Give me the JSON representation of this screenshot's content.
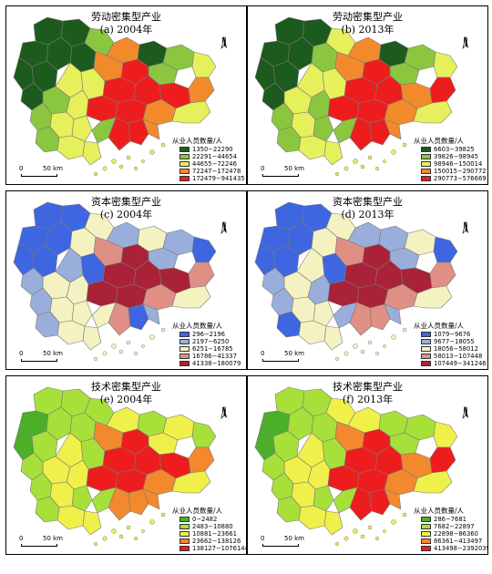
{
  "panels": [
    {
      "id": "a",
      "title": "劳动密集型产业",
      "subtitle": "(a) 2004年",
      "legend_title": "从业人员数量/人",
      "classes": [
        {
          "label": "1350−22290",
          "color": "#1d5a1d"
        },
        {
          "label": "22291−44654",
          "color": "#8bc63f"
        },
        {
          "label": "44655−72246",
          "color": "#e6f05a"
        },
        {
          "label": "72247−172478",
          "color": "#f28a2c"
        },
        {
          "label": "172479−941435",
          "color": "#ee1d1d"
        }
      ],
      "scale": {
        "zero": "0",
        "dist": "50 km"
      },
      "north": "N"
    },
    {
      "id": "b",
      "title": "劳动密集型产业",
      "subtitle": "(b) 2013年",
      "legend_title": "从业人员数量/人",
      "classes": [
        {
          "label": "6603−39825",
          "color": "#1d5a1d"
        },
        {
          "label": "39826−98945",
          "color": "#8bc63f"
        },
        {
          "label": "98946−150014",
          "color": "#e6f05a"
        },
        {
          "label": "150015−290772",
          "color": "#f28a2c"
        },
        {
          "label": "290773−576669",
          "color": "#ee1d1d"
        }
      ],
      "scale": {
        "zero": "0",
        "dist": "50 km"
      },
      "north": "N"
    },
    {
      "id": "c",
      "title": "资本密集型产业",
      "subtitle": "(c) 2004年",
      "legend_title": "从业人员数量/人",
      "classes": [
        {
          "label": "296−2196",
          "color": "#3e66e0"
        },
        {
          "label": "2197−6250",
          "color": "#9aaedc"
        },
        {
          "label": "6251−16785",
          "color": "#f5f2c2"
        },
        {
          "label": "16786−41337",
          "color": "#e08f84"
        },
        {
          "label": "41338−180079",
          "color": "#aa2238"
        }
      ],
      "scale": {
        "zero": "0",
        "dist": "50 km"
      },
      "north": "N"
    },
    {
      "id": "d",
      "title": "资本密集型产业",
      "subtitle": "(d) 2013年",
      "legend_title": "从业人员数量/人",
      "classes": [
        {
          "label": "1079−9676",
          "color": "#3e66e0"
        },
        {
          "label": "9677−18055",
          "color": "#9aaedc"
        },
        {
          "label": "18056−58012",
          "color": "#f5f2c2"
        },
        {
          "label": "58013−107448",
          "color": "#e08f84"
        },
        {
          "label": "107449−341246",
          "color": "#aa2238"
        }
      ],
      "scale": {
        "zero": "0",
        "dist": "50 km"
      },
      "north": "N"
    },
    {
      "id": "e",
      "title": "技术密集型产业",
      "subtitle": "(e) 2004年",
      "legend_title": "从业人员数量/人",
      "classes": [
        {
          "label": "0−2482",
          "color": "#4caf2a"
        },
        {
          "label": "2483−10880",
          "color": "#a8e03a"
        },
        {
          "label": "10881−23661",
          "color": "#f0f04a"
        },
        {
          "label": "23662−138126",
          "color": "#f2892c"
        },
        {
          "label": "138127−1076144",
          "color": "#ee1d1d"
        }
      ],
      "scale": {
        "zero": "0",
        "dist": "50 km"
      },
      "north": "N"
    },
    {
      "id": "f",
      "title": "技术密集型产业",
      "subtitle": "(f) 2013年",
      "legend_title": "从业人员数量/人",
      "classes": [
        {
          "label": "286−7681",
          "color": "#4caf2a"
        },
        {
          "label": "7682−22897",
          "color": "#a8e03a"
        },
        {
          "label": "22898−86360",
          "color": "#f0f04a"
        },
        {
          "label": "86361−413497",
          "color": "#f2892c"
        },
        {
          "label": "413498−2392039",
          "color": "#ee1d1d"
        }
      ],
      "scale": {
        "zero": "0",
        "dist": "50 km"
      },
      "north": "N"
    }
  ],
  "region_classes": {
    "a": [
      0,
      0,
      0,
      0,
      0,
      0,
      0,
      1,
      3,
      0,
      1,
      2,
      1,
      3,
      4,
      4,
      4,
      4,
      3,
      2,
      2,
      1,
      0,
      2,
      4,
      4,
      3,
      2,
      4,
      1,
      2,
      2,
      1,
      2,
      1,
      4,
      3,
      2
    ],
    "b": [
      0,
      0,
      0,
      0,
      0,
      0,
      1,
      2,
      3,
      0,
      1,
      2,
      1,
      3,
      4,
      4,
      4,
      3,
      4,
      2,
      2,
      2,
      0,
      1,
      4,
      4,
      3,
      2,
      4,
      1,
      1,
      2,
      1,
      2,
      1,
      4,
      3,
      2
    ],
    "c": [
      0,
      0,
      0,
      0,
      0,
      0,
      2,
      2,
      1,
      2,
      1,
      0,
      1,
      3,
      4,
      4,
      4,
      4,
      3,
      1,
      0,
      2,
      1,
      2,
      4,
      4,
      3,
      2,
      3,
      2,
      2,
      2,
      1,
      2,
      1,
      0,
      1,
      2
    ],
    "d": [
      0,
      0,
      0,
      0,
      0,
      0,
      2,
      2,
      1,
      1,
      2,
      0,
      1,
      3,
      4,
      4,
      4,
      4,
      3,
      2,
      0,
      2,
      1,
      1,
      4,
      4,
      3,
      2,
      3,
      1,
      2,
      2,
      1,
      2,
      0,
      3,
      1,
      2
    ],
    "e": [
      1,
      1,
      0,
      1,
      0,
      1,
      1,
      1,
      2,
      1,
      2,
      1,
      2,
      3,
      4,
      4,
      4,
      4,
      3,
      2,
      1,
      2,
      1,
      2,
      4,
      4,
      3,
      2,
      3,
      1,
      1,
      2,
      1,
      2,
      1,
      3,
      3,
      2
    ],
    "f": [
      1,
      1,
      0,
      1,
      0,
      1,
      1,
      2,
      2,
      1,
      1,
      2,
      1,
      3,
      4,
      4,
      4,
      3,
      4,
      2,
      1,
      2,
      1,
      2,
      4,
      4,
      3,
      2,
      4,
      1,
      1,
      2,
      1,
      2,
      1,
      4,
      3,
      2
    ]
  }
}
